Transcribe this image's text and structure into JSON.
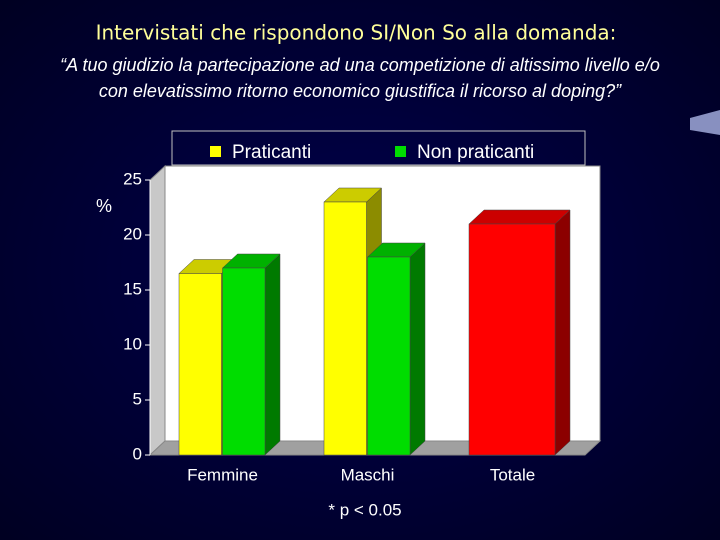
{
  "chart_data": {
    "type": "bar3d",
    "title": "Intervistati che rispondono SI/Non So alla domanda:",
    "subtitle": [
      "“A tuo giudizio la partecipazione ad una competizione di altissimo livello e/o",
      "con elevatissimo ritorno economico giustifica il ricorso al doping?”"
    ],
    "y_label": "%",
    "categories": [
      "Femmine",
      "Maschi",
      "Totale"
    ],
    "series": [
      {
        "name": "Praticanti",
        "color": "#ffff00",
        "values": [
          16.5,
          23,
          null
        ]
      },
      {
        "name": "Non praticanti",
        "color": "#00dd00",
        "values": [
          17,
          18,
          null
        ]
      },
      {
        "color": "#ff0000",
        "values": [
          null,
          null,
          21
        ]
      }
    ],
    "ylim": [
      0,
      25
    ],
    "yticks": [
      0,
      5,
      10,
      15,
      20,
      25
    ],
    "annotations": [
      "*",
      "* p < 0.05"
    ]
  }
}
